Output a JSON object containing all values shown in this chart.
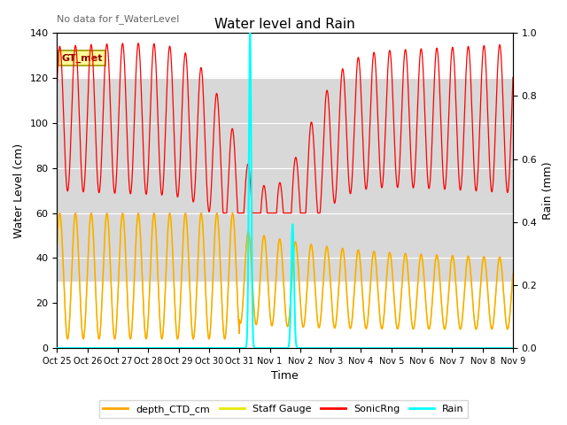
{
  "title": "Water level and Rain",
  "xlabel": "Time",
  "ylabel_left": "Water Level (cm)",
  "ylabel_right": "Rain (mm)",
  "annotation_topleft": "No data for f_WaterLevel",
  "box_label": "GT_met",
  "ylim_left": [
    0,
    140
  ],
  "ylim_right": [
    0.0,
    1.0
  ],
  "yticks_left": [
    0,
    20,
    40,
    60,
    80,
    100,
    120,
    140
  ],
  "yticks_right": [
    0.0,
    0.2,
    0.4,
    0.6,
    0.8,
    1.0
  ],
  "gray_band1": [
    30,
    75
  ],
  "gray_band2": [
    75,
    120
  ],
  "gray_band_color": "#d8d8d8",
  "color_CTD": "#FFA500",
  "color_staff": "#E8E800",
  "color_sonic": "#FF0000",
  "color_rain": "#00FFFF",
  "legend_labels": [
    "depth_CTD_cm",
    "Staff Gauge",
    "SonicRng",
    "Rain"
  ],
  "xtick_labels": [
    "Oct 25",
    "Oct 26",
    "Oct 27",
    "Oct 28",
    "Oct 29",
    "Oct 30",
    "Oct 31",
    "Nov 1",
    "Nov 2",
    "Nov 3",
    "Nov 4",
    "Nov 5",
    "Nov 6",
    "Nov 7",
    "Nov 8",
    "Nov 9"
  ],
  "xtick_positions": [
    0,
    1,
    2,
    3,
    4,
    5,
    6,
    7,
    8,
    9,
    10,
    11,
    12,
    13,
    14,
    15
  ],
  "figsize": [
    6.4,
    4.8
  ],
  "dpi": 100
}
